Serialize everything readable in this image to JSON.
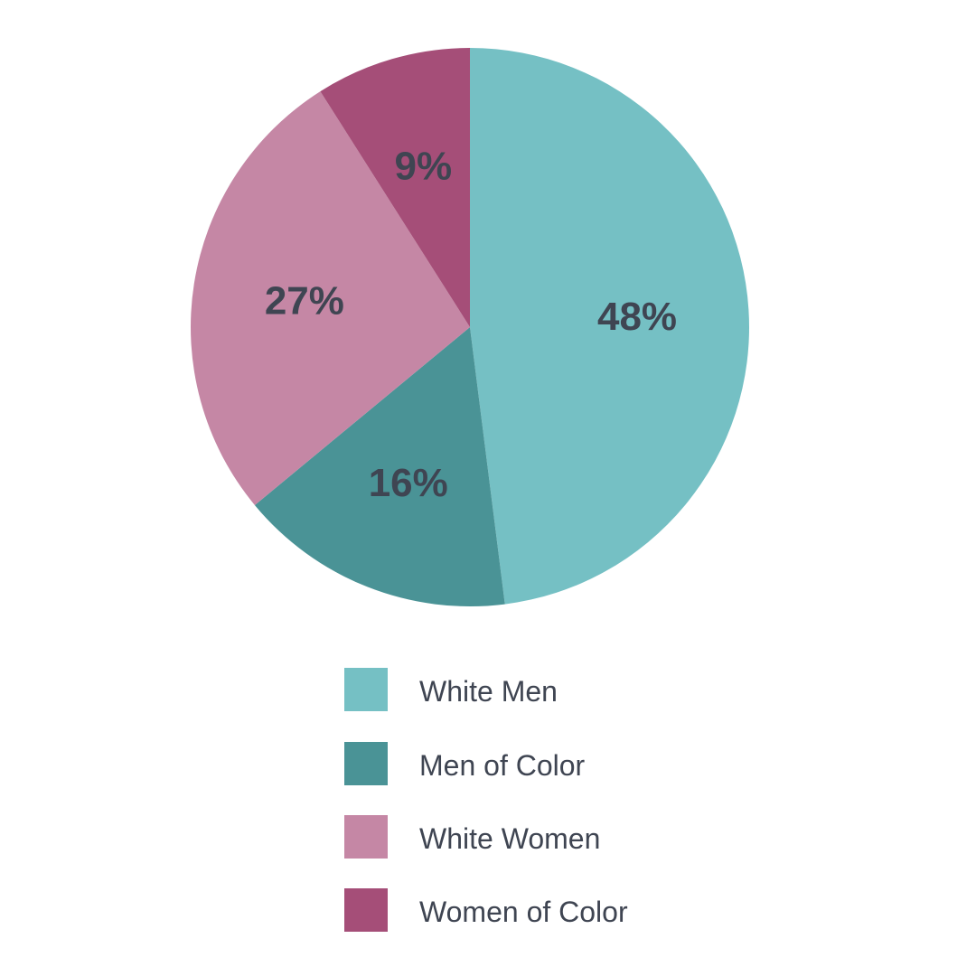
{
  "chart_data": {
    "type": "pie",
    "title": "",
    "categories": [
      "White Men",
      "Men of Color",
      "White Women",
      "Women of Color"
    ],
    "values": [
      48,
      16,
      27,
      9
    ],
    "value_labels": [
      "48%",
      "16%",
      "27%",
      "9%"
    ],
    "colors": [
      "#75c0c4",
      "#4a9396",
      "#c587a5",
      "#a54e78"
    ],
    "label_color": "#3f4552",
    "start": "12 o'clock",
    "direction": "clockwise",
    "legend_placement": "bottom"
  }
}
